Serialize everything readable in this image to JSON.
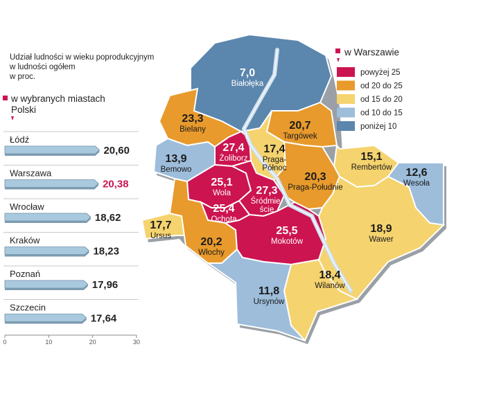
{
  "description_lines": [
    "Udział ludności w wieku poprodukcyjnym",
    "w ludności ogółem",
    "w proc."
  ],
  "cities_heading": [
    "w wybranych miastach",
    "Polski"
  ],
  "warsaw_heading": "w Warszawie",
  "colors": {
    "over25": "#cc1450",
    "20to25": "#e89a2c",
    "15to20": "#f5d36e",
    "10to15": "#9dbddb",
    "under10": "#5b86ad",
    "bar": "#a9c9de",
    "highlight_text": "#cc1450",
    "map_border": "#ffffff",
    "river": "#cfe0ee"
  },
  "legend": [
    {
      "label": "powyżej 25",
      "color_key": "over25"
    },
    {
      "label": "od 20 do 25",
      "color_key": "20to25"
    },
    {
      "label": "od 15 do 20",
      "color_key": "15to20"
    },
    {
      "label": "od 10 do 15",
      "color_key": "10to15"
    },
    {
      "label": "poniżej 10",
      "color_key": "under10"
    }
  ],
  "chart_data": [
    {
      "type": "bar",
      "orientation": "horizontal",
      "categories": [
        "Łódź",
        "Warszawa",
        "Wrocław",
        "Kraków",
        "Poznań",
        "Szczecin"
      ],
      "values": [
        20.6,
        20.38,
        18.62,
        18.23,
        17.96,
        17.64
      ],
      "value_labels": [
        "20,60",
        "20,38",
        "18,62",
        "18,23",
        "17,96",
        "17,64"
      ],
      "highlight": "Warszawa",
      "xlim": [
        0,
        30
      ],
      "xticks": [
        "0",
        "10",
        "20",
        "30"
      ]
    },
    {
      "type": "choropleth",
      "districts": [
        {
          "name": "Białołęka",
          "value_label": "7,0",
          "value": 7.0,
          "class": "under10"
        },
        {
          "name": "Bielany",
          "value_label": "23,3",
          "value": 23.3,
          "class": "20to25"
        },
        {
          "name": "Targówek",
          "value_label": "20,7",
          "value": 20.7,
          "class": "20to25"
        },
        {
          "name": "Żoliborz",
          "value_label": "27,4",
          "value": 27.4,
          "class": "over25"
        },
        {
          "name": "Praga-Północ",
          "value_label": "17,4",
          "value": 17.4,
          "class": "15to20"
        },
        {
          "name": "Bemowo",
          "value_label": "13,9",
          "value": 13.9,
          "class": "10to15"
        },
        {
          "name": "Rembertów",
          "value_label": "15,1",
          "value": 15.1,
          "class": "15to20"
        },
        {
          "name": "Wola",
          "value_label": "25,1",
          "value": 25.1,
          "class": "over25"
        },
        {
          "name": "Śródmieście",
          "value_label": "27,3",
          "value": 27.3,
          "class": "over25"
        },
        {
          "name": "Praga-Południe",
          "value_label": "20,3",
          "value": 20.3,
          "class": "20to25"
        },
        {
          "name": "Wesoła",
          "value_label": "12,6",
          "value": 12.6,
          "class": "10to15"
        },
        {
          "name": "Ochota",
          "value_label": "25,4",
          "value": 25.4,
          "class": "over25"
        },
        {
          "name": "Ursus",
          "value_label": "17,7",
          "value": 17.7,
          "class": "15to20"
        },
        {
          "name": "Włochy",
          "value_label": "20,2",
          "value": 20.2,
          "class": "20to25"
        },
        {
          "name": "Mokotów",
          "value_label": "25,5",
          "value": 25.5,
          "class": "over25"
        },
        {
          "name": "Wawer",
          "value_label": "18,9",
          "value": 18.9,
          "class": "15to20"
        },
        {
          "name": "Wilanów",
          "value_label": "18,4",
          "value": 18.4,
          "class": "15to20"
        },
        {
          "name": "Ursynów",
          "value_label": "11,8",
          "value": 11.8,
          "class": "10to15"
        }
      ]
    }
  ]
}
